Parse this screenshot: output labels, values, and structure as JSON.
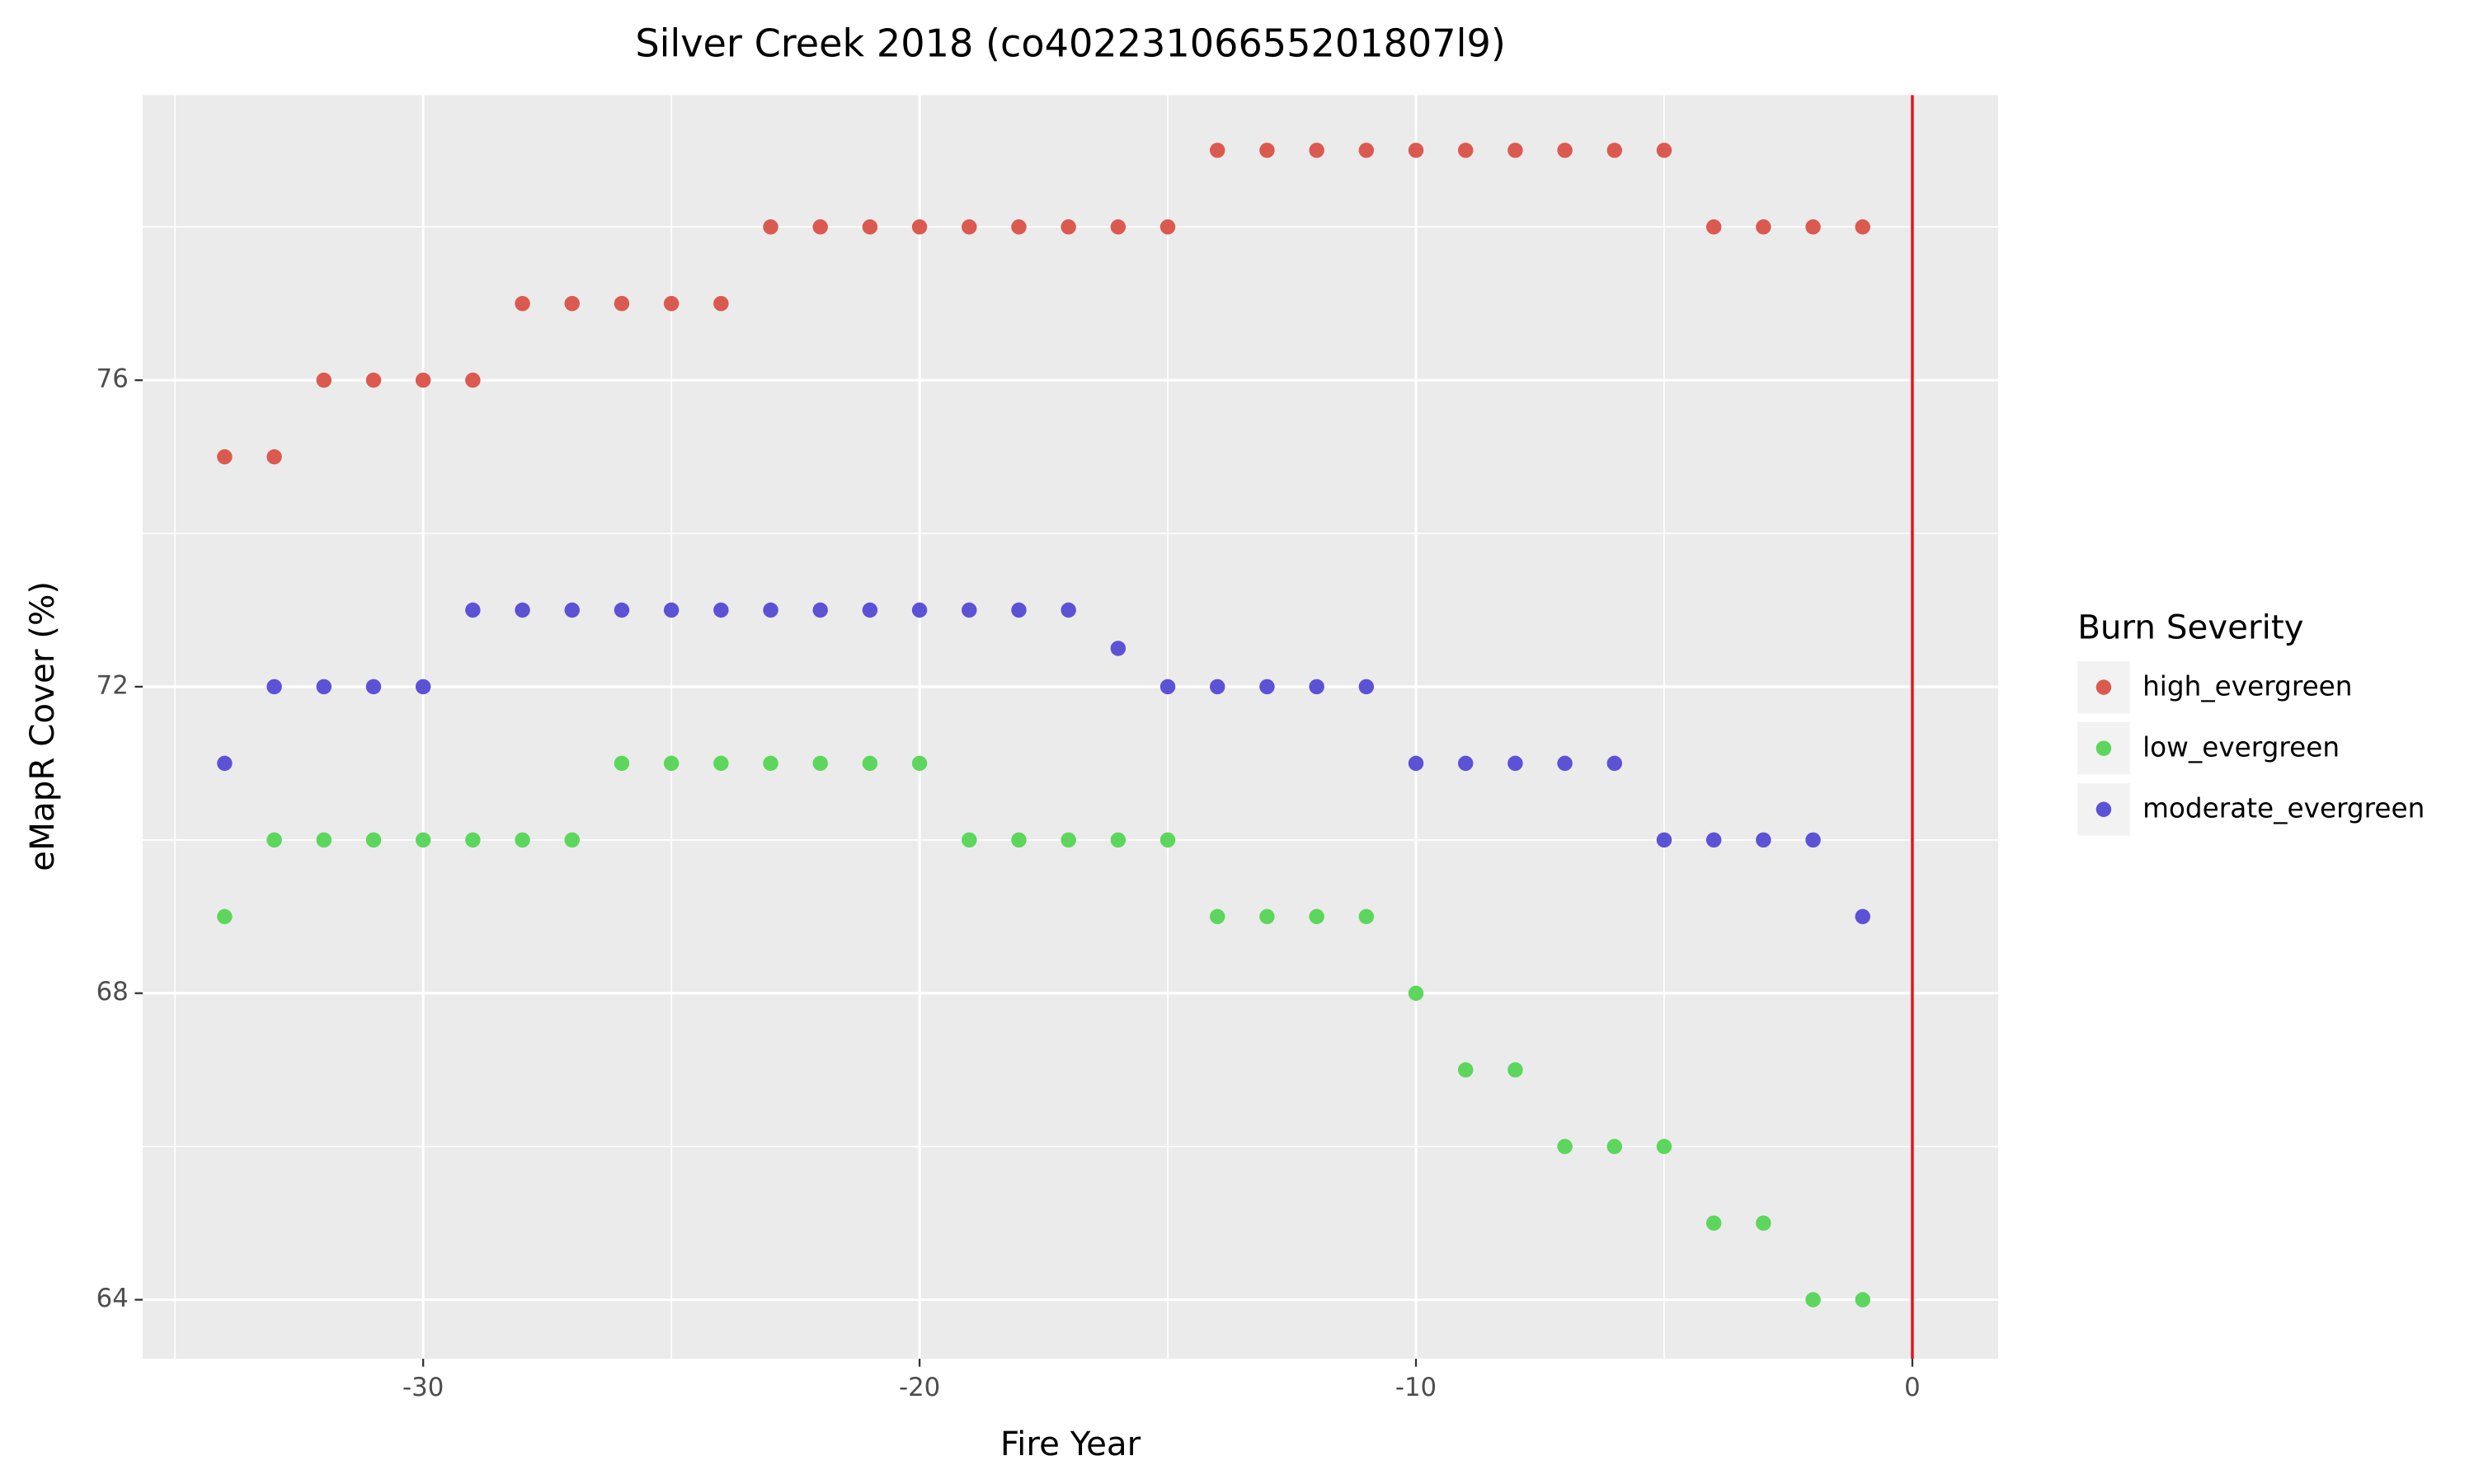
{
  "chart_data": {
    "type": "scatter",
    "title": "Silver Creek 2018 (co40223106655201807l9)",
    "x_label": "Fire Year",
    "y_label": "eMapR Cover (%)",
    "legend_title": "Burn Severity",
    "legend": "right",
    "x": [
      -34,
      -33,
      -32,
      -31,
      -30,
      -29,
      -28,
      -27,
      -26,
      -25,
      -24,
      -23,
      -22,
      -21,
      -20,
      -19,
      -18,
      -17,
      -16,
      -15,
      -14,
      -13,
      -12,
      -11,
      -10,
      -9,
      -8,
      -7,
      -6,
      -5,
      -4,
      -3,
      -2,
      -1
    ],
    "series": [
      {
        "name": "high_evergreen",
        "color": "#db5a50",
        "values": [
          75,
          75,
          76,
          76,
          76,
          76,
          77,
          77,
          77,
          77,
          77,
          78,
          78,
          78,
          78,
          78,
          78,
          78,
          78,
          78,
          79,
          79,
          79,
          79,
          79,
          79,
          79,
          79,
          79,
          79,
          78,
          78,
          78,
          78
        ]
      },
      {
        "name": "low_evergreen",
        "color": "#5cd65c",
        "values": [
          69,
          70,
          70,
          70,
          70,
          70,
          70,
          70,
          71,
          71,
          71,
          71,
          71,
          71,
          71,
          70,
          70,
          70,
          70,
          70,
          69,
          69,
          69,
          69,
          68,
          67,
          67,
          66,
          66,
          66,
          65,
          65,
          64,
          64
        ]
      },
      {
        "name": "moderate_evergreen",
        "color": "#5b52d6",
        "values": [
          71,
          72,
          72,
          72,
          72,
          73,
          73,
          73,
          73,
          73,
          73,
          73,
          73,
          73,
          73,
          73,
          73,
          73,
          72.5,
          72,
          72,
          72,
          72,
          72,
          71,
          71,
          71,
          71,
          71,
          70,
          70,
          70,
          70,
          69
        ]
      }
    ],
    "vline": 0,
    "vline_color": "#e8121c",
    "xlim": [
      -35.65,
      1.73
    ],
    "xticks": [
      -30,
      -20,
      -10,
      0
    ],
    "ylim": [
      63.23,
      79.72
    ],
    "yticks": [
      64,
      68,
      72,
      76
    ],
    "grid": true
  }
}
